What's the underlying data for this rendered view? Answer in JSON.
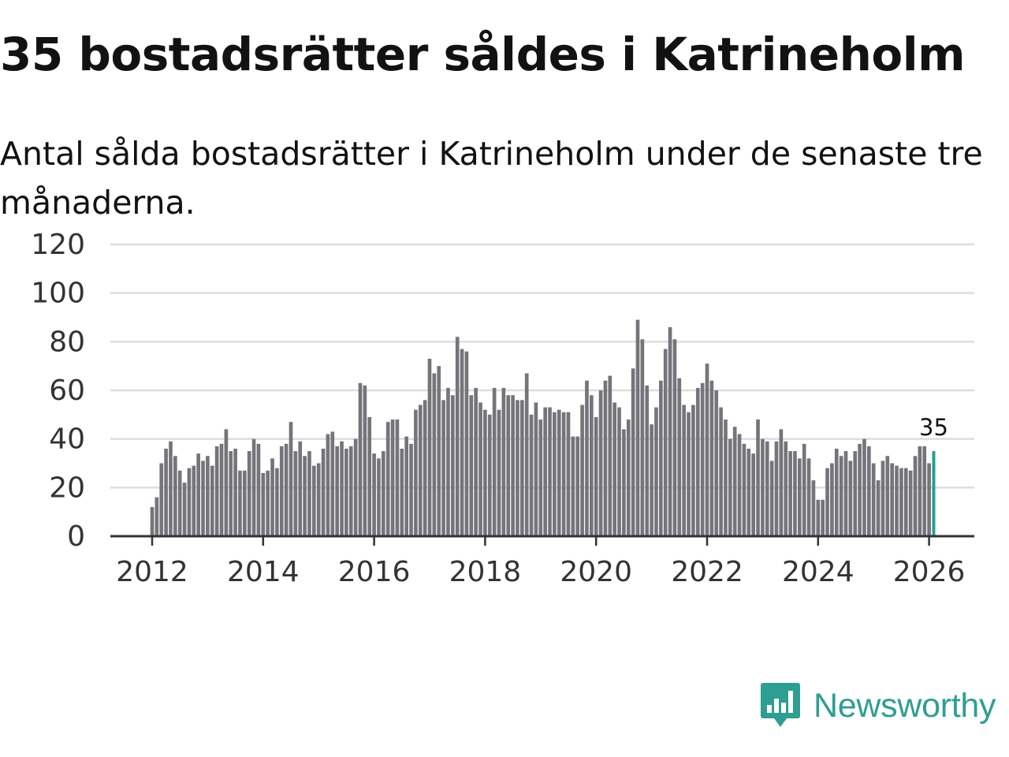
{
  "chart_data": {
    "type": "bar",
    "title": "35 bostadsrätter såldes i Katrineholm",
    "subtitle": "Antal sålda bostadsrätter i Katrineholm under de senaste tre månaderna.",
    "xlabel": "",
    "ylabel": "",
    "ylim": [
      0,
      120
    ],
    "yticks": [
      "0",
      "20",
      "40",
      "60",
      "80",
      "100",
      "120"
    ],
    "xticks": [
      "2012",
      "2014",
      "2016",
      "2018",
      "2020",
      "2022",
      "2024",
      "2026"
    ],
    "start": "2012-01",
    "frequency": "monthly",
    "highlight_label": "35",
    "colors": {
      "bar": "#75747b",
      "highlight": "#2a9d8f",
      "grid": "#dddddd",
      "axis": "#333333"
    },
    "values": [
      12,
      16,
      30,
      36,
      39,
      33,
      27,
      22,
      28,
      29,
      34,
      31,
      33,
      29,
      37,
      38,
      44,
      35,
      36,
      27,
      27,
      35,
      40,
      38,
      26,
      27,
      32,
      28,
      37,
      38,
      47,
      35,
      39,
      33,
      35,
      29,
      30,
      36,
      42,
      43,
      37,
      39,
      36,
      37,
      40,
      63,
      62,
      49,
      34,
      32,
      35,
      47,
      48,
      48,
      36,
      41,
      38,
      52,
      54,
      56,
      73,
      67,
      70,
      56,
      61,
      58,
      82,
      77,
      76,
      58,
      61,
      55,
      52,
      50,
      61,
      52,
      61,
      58,
      58,
      56,
      56,
      67,
      50,
      55,
      48,
      53,
      53,
      51,
      52,
      51,
      51,
      41,
      41,
      54,
      64,
      58,
      49,
      60,
      64,
      66,
      55,
      53,
      44,
      48,
      69,
      89,
      81,
      62,
      46,
      53,
      64,
      77,
      86,
      81,
      65,
      54,
      51,
      54,
      61,
      63,
      71,
      64,
      60,
      53,
      48,
      40,
      45,
      42,
      38,
      36,
      34,
      48,
      40,
      39,
      31,
      39,
      44,
      39,
      35,
      35,
      32,
      38,
      32,
      23,
      15,
      15,
      28,
      30,
      36,
      33,
      35,
      31,
      35,
      38,
      40,
      37,
      30,
      23,
      31,
      33,
      30,
      29,
      28,
      28,
      27,
      33,
      37,
      37,
      30,
      35
    ]
  },
  "logo": {
    "text": "Newsworthy",
    "icon": "newsworthy-chart-icon"
  }
}
